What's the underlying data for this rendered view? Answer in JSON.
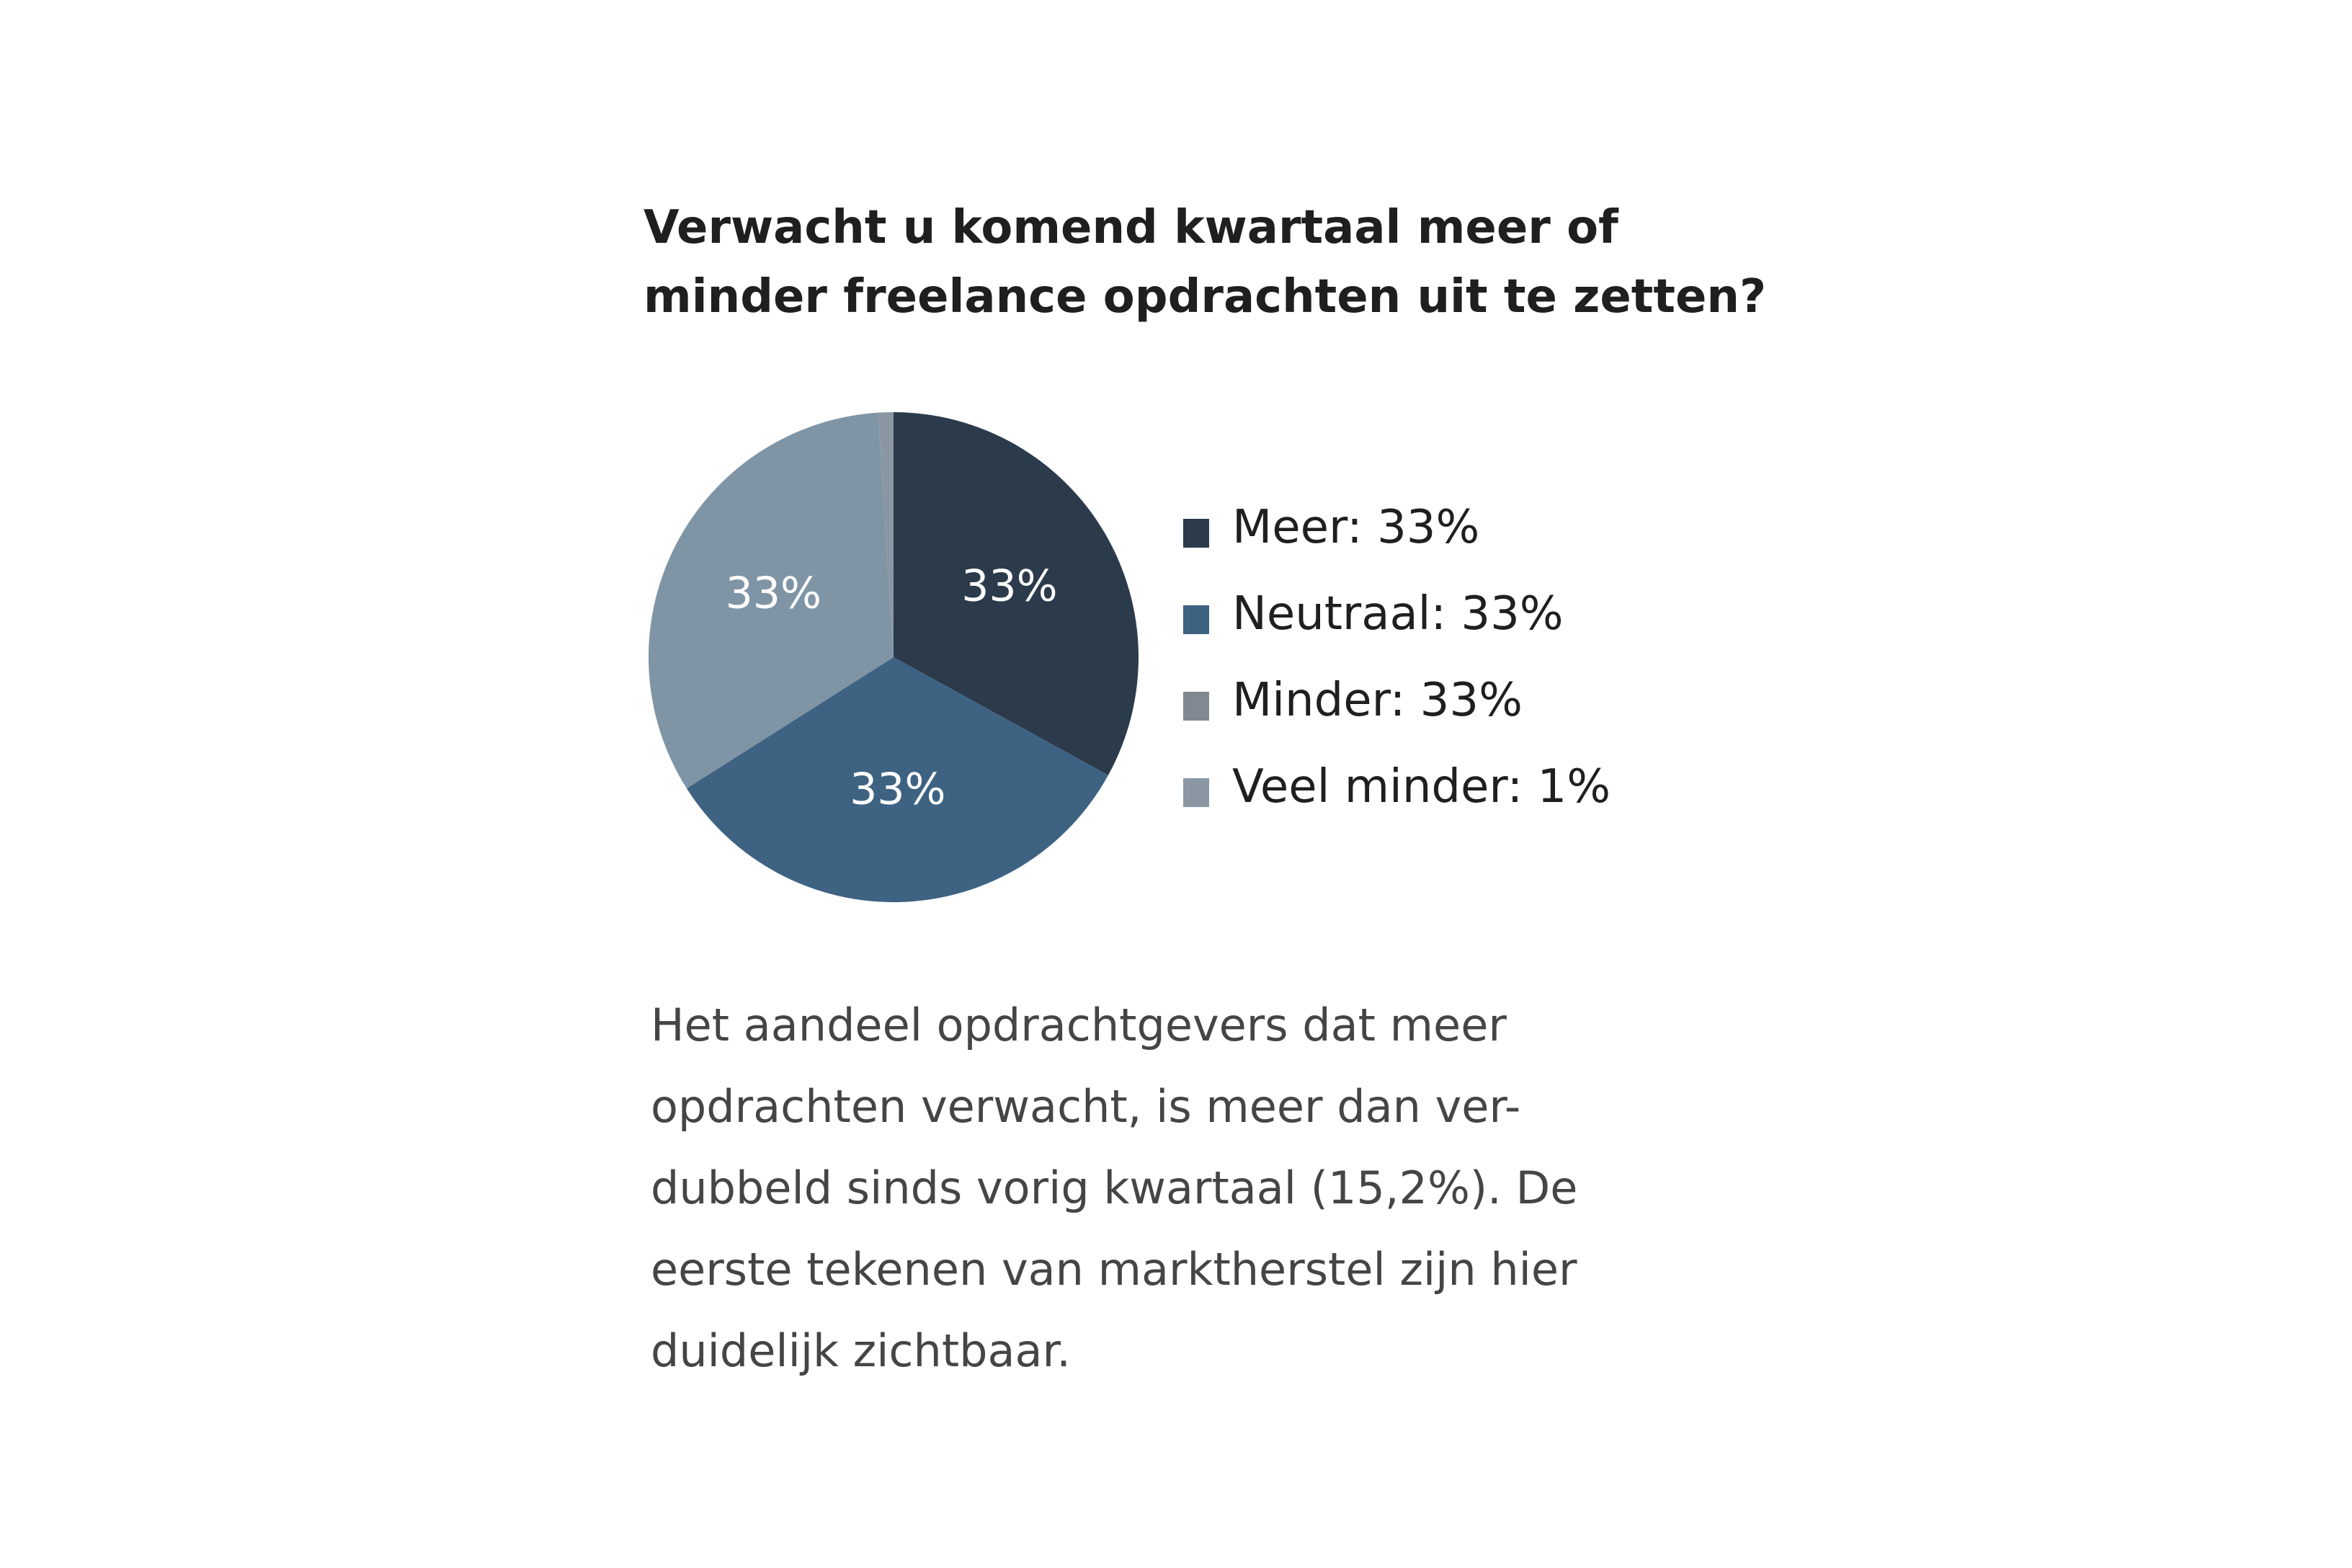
{
  "title_lines": [
    "Verwacht u komend kwartaal meer of",
    "minder freelance opdrachten uit te zetten?"
  ],
  "chart_data": {
    "type": "pie",
    "title": "Verwacht u komend kwartaal meer of minder freelance opdrachten uit te zetten?",
    "slices": [
      {
        "label": "Meer",
        "value": 33,
        "color": "#2b3b4b",
        "data_label": "33%",
        "legend": "Meer: 33%"
      },
      {
        "label": "Neutraal",
        "value": 33,
        "color": "#3e6282",
        "data_label": "33%",
        "legend": "Neutraal: 33%"
      },
      {
        "label": "Minder",
        "value": 33,
        "color": "#7f95a6",
        "data_label": "33%",
        "legend": "Minder: 33%"
      },
      {
        "label": "Veel minder",
        "value": 1,
        "color": "#8a97a3",
        "data_label": "",
        "legend": "Veel minder: 1%"
      }
    ],
    "legend_swatch_colors": [
      "#2b3b4b",
      "#3e6282",
      "#808891",
      "#8a97a3"
    ],
    "legend_position": "right",
    "data_label_color": "#ffffff"
  },
  "body_lines": [
    "Het aandeel opdrachtgevers dat meer",
    "opdrachten verwacht, is meer dan ver-",
    "dubbeld sinds vorig kwartaal (15,2%). De",
    "eerste tekenen van marktherstel zijn hier",
    "duidelijk zichtbaar."
  ]
}
